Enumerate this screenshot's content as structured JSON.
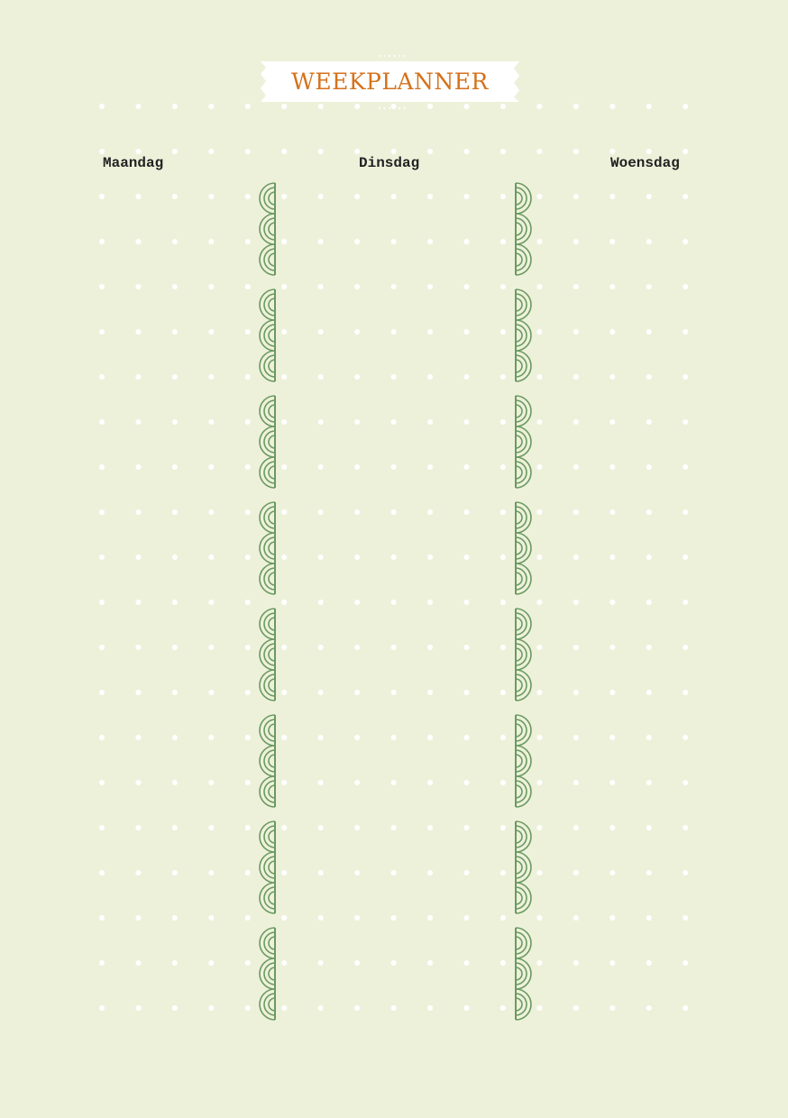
{
  "title": "WEEKPLANNER",
  "days": [
    "Maandag",
    "Dinsdag",
    "Woensdag"
  ],
  "colors": {
    "background": "#eef1da",
    "title": "#d4721c",
    "ornament": "#6a9a62",
    "dots": "#ffffff",
    "banner": "#ffffff"
  },
  "ornament_icon": "concentric-semicircles"
}
